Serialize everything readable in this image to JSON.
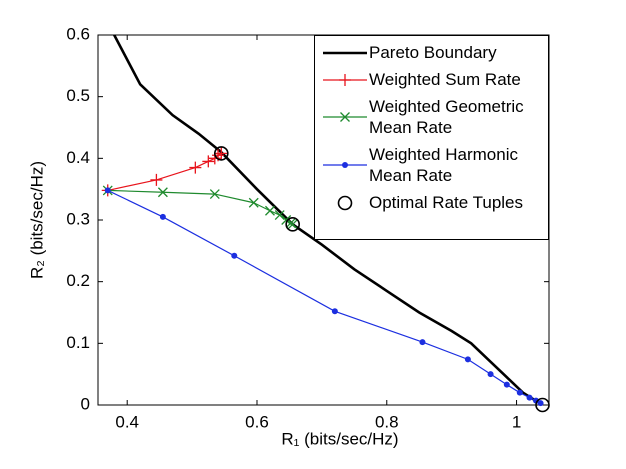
{
  "chart_data": {
    "type": "line",
    "xlabel": "R₁  (bits/sec/Hz)",
    "ylabel": "R₂  (bits/sec/Hz)",
    "xlim": [
      0.355,
      1.05
    ],
    "ylim": [
      0,
      0.6
    ],
    "xticks": [
      0.4,
      0.6,
      0.8,
      1
    ],
    "yticks": [
      0,
      0.1,
      0.2,
      0.3,
      0.4,
      0.5,
      0.6
    ],
    "grid": false,
    "legend": "upper right",
    "series": [
      {
        "name": "Pareto Boundary",
        "color": "#000000",
        "marker": "none",
        "linestyle": "solid",
        "x": [
          0.38,
          0.42,
          0.47,
          0.51,
          0.545,
          0.6,
          0.655,
          0.7,
          0.75,
          0.8,
          0.85,
          0.9,
          0.93,
          0.96,
          0.99,
          1.01,
          1.04
        ],
        "values": [
          0.6,
          0.52,
          0.47,
          0.44,
          0.41,
          0.35,
          0.293,
          0.26,
          0.22,
          0.185,
          0.15,
          0.12,
          0.1,
          0.07,
          0.04,
          0.02,
          0
        ]
      },
      {
        "name": "Weighted Sum Rate",
        "color": "#e8141c",
        "marker": "+",
        "linestyle": "solid",
        "x": [
          0.37,
          0.445,
          0.505,
          0.525,
          0.535,
          0.54,
          0.545
        ],
        "values": [
          0.348,
          0.365,
          0.385,
          0.395,
          0.4,
          0.405,
          0.408
        ]
      },
      {
        "name": "Weighted Geometric Mean Rate",
        "color": "#1f8a2e",
        "marker": "x",
        "linestyle": "solid",
        "x": [
          0.37,
          0.455,
          0.535,
          0.595,
          0.62,
          0.635,
          0.645,
          0.652,
          0.655
        ],
        "values": [
          0.348,
          0.345,
          0.342,
          0.328,
          0.315,
          0.308,
          0.3,
          0.295,
          0.293
        ]
      },
      {
        "name": "Weighted Harmonic Mean Rate",
        "color": "#1c2fe0",
        "marker": "dot",
        "linestyle": "solid",
        "x": [
          0.37,
          0.455,
          0.565,
          0.72,
          0.855,
          0.925,
          0.96,
          0.985,
          1.005,
          1.02,
          1.03,
          1.037
        ],
        "values": [
          0.348,
          0.305,
          0.242,
          0.152,
          0.102,
          0.074,
          0.05,
          0.033,
          0.02,
          0.012,
          0.007,
          0.003
        ]
      },
      {
        "name": "Optimal Rate Tuples",
        "color": "#000000",
        "marker": "o",
        "linestyle": "none",
        "x": [
          0.545,
          0.655,
          1.04
        ],
        "values": [
          0.408,
          0.293,
          0
        ]
      }
    ]
  }
}
